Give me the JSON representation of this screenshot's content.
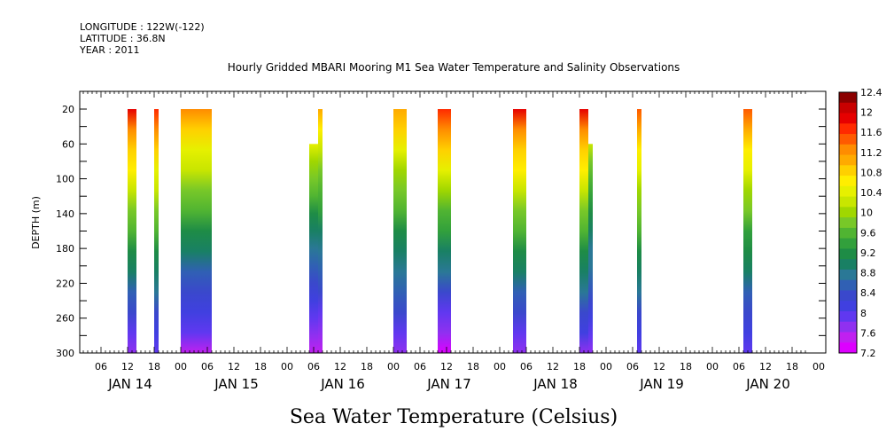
{
  "header": {
    "longitude": "LONGITUDE : 122W(-122)",
    "latitude": "LATITUDE : 36.8N",
    "year": "YEAR : 2011",
    "title": "Hourly Gridded MBARI Mooring M1 Sea Water Temperature and Salinity Observations"
  },
  "chart_data": {
    "type": "heatmap",
    "title": "Hourly Gridded MBARI Mooring M1 Sea Water Temperature and Salinity Observations",
    "xlabel": "Sea Water Temperature (Celsius)",
    "ylabel": "DEPTH (m)",
    "ylim": [
      300,
      20
    ],
    "y_inverted": true,
    "y_ticks": [
      20,
      60,
      100,
      140,
      180,
      220,
      260,
      300
    ],
    "x_tick_labels": [
      "06",
      "12",
      "18",
      "00",
      "06",
      "12",
      "18",
      "00",
      "06",
      "12",
      "18",
      "00",
      "06",
      "12",
      "18",
      "00",
      "06",
      "12",
      "18",
      "00",
      "06",
      "12",
      "18",
      "00",
      "06",
      "12",
      "18",
      "00"
    ],
    "day_labels": [
      "JAN 14",
      "JAN 15",
      "JAN 16",
      "JAN 17",
      "JAN 18",
      "JAN 19",
      "JAN 20"
    ],
    "colorbar": {
      "min": 7.2,
      "max": 12.4,
      "labels": [
        "12.4",
        "12",
        "11.6",
        "11.2",
        "10.8",
        "10.4",
        "10",
        "9.6",
        "9.2",
        "8.8",
        "8.4",
        "8",
        "7.6",
        "7.2"
      ],
      "colors": [
        "#8b0000",
        "#c80000",
        "#e60000",
        "#ff2a00",
        "#ff5a00",
        "#ff8c00",
        "#ffaa00",
        "#ffd000",
        "#ffee00",
        "#e6f000",
        "#c8e600",
        "#a0d700",
        "#78c828",
        "#50b432",
        "#32a03c",
        "#1e8c46",
        "#198064",
        "#2a7896",
        "#3060b4",
        "#3a48cc",
        "#4040e0",
        "#6038f0",
        "#9030f0",
        "#c020f0",
        "#dd00ff"
      ],
      "color_keys": [
        "#8b0000",
        "#dd00ff"
      ]
    },
    "series": [
      {
        "start_hour": 12,
        "end_hour": 14,
        "min_depth": 20,
        "mid_depth": 40,
        "gap_depth": 40,
        "temp_top": 11.9,
        "temp_bottom": 7.6
      },
      {
        "start_hour": 18,
        "end_hour": 19,
        "min_depth": 20,
        "temp_top": 11.7,
        "temp_bottom": 7.8
      },
      {
        "start_hour": 24,
        "end_hour": 31,
        "min_depth": 20,
        "temp_top": 11.3,
        "temp_bottom": 7.5
      },
      {
        "start_hour": 53,
        "end_hour": 55,
        "min_depth": 60,
        "temp_top": 10.4,
        "temp_bottom": 7.4
      },
      {
        "start_hour": 55,
        "end_hour": 56,
        "min_depth": 20,
        "temp_top": 11.0,
        "temp_bottom": 7.4
      },
      {
        "start_hour": 72,
        "end_hour": 75,
        "min_depth": 20,
        "temp_top": 11.2,
        "temp_bottom": 7.7
      },
      {
        "start_hour": 82,
        "end_hour": 85,
        "min_depth": 20,
        "temp_top": 11.8,
        "temp_bottom": 7.3
      },
      {
        "start_hour": 99,
        "end_hour": 102,
        "min_depth": 20,
        "temp_top": 11.9,
        "temp_bottom": 7.6
      },
      {
        "start_hour": 114,
        "end_hour": 116,
        "min_depth": 20,
        "temp_top": 11.9,
        "temp_bottom": 7.7
      },
      {
        "start_hour": 116,
        "end_hour": 117,
        "min_depth": 60,
        "temp_top": 10.2,
        "temp_bottom": 7.7
      },
      {
        "start_hour": 127,
        "end_hour": 128,
        "min_depth": 20,
        "temp_top": 11.6,
        "temp_bottom": 7.8
      },
      {
        "start_hour": 151,
        "end_hour": 153,
        "min_depth": 20,
        "temp_top": 11.5,
        "temp_bottom": 7.8
      }
    ]
  }
}
